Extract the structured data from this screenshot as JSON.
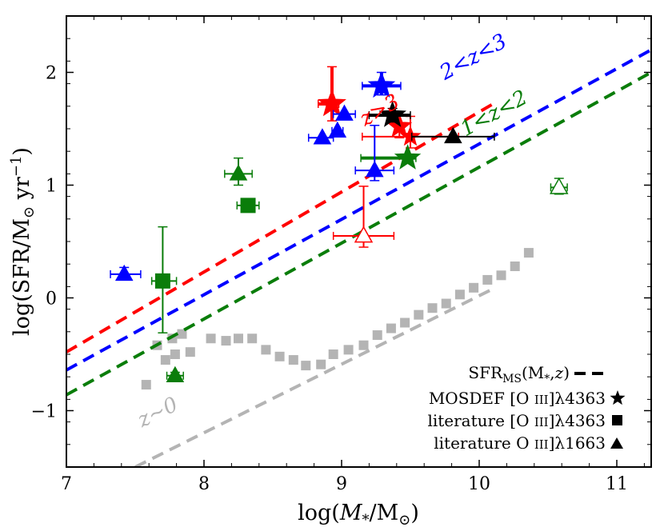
{
  "chart_data": {
    "type": "scatter",
    "title": "",
    "xlabel": "log(M*/M⊙)",
    "ylabel": "log(SFR/M⊙ yr⁻¹)",
    "xlim": [
      7,
      11.25
    ],
    "ylim": [
      -1.5,
      2.5
    ],
    "x_ticks": [
      "7",
      "8",
      "9",
      "10",
      "11"
    ],
    "y_ticks": [
      "−1",
      "0",
      "1",
      "2"
    ],
    "legend": {
      "placement": "bottom-right",
      "entries": [
        {
          "label": "SFR_MS(M*,z)",
          "marker": "dash"
        },
        {
          "label": "MOSDEF [O III]λ4363",
          "marker": "star"
        },
        {
          "label": "literature [O III]λ4363",
          "marker": "square"
        },
        {
          "label": "literature O III]λ1663",
          "marker": "triangle"
        }
      ]
    },
    "colors": {
      "red": "#ff0000",
      "blue": "#0000ff",
      "green": "#0a7d0a",
      "black": "#000000",
      "gray": "#b4b4b4"
    },
    "main_sequence_lines": [
      {
        "name": "z>3",
        "label": "z>3",
        "color": "red",
        "x": [
          7.0,
          10.1
        ],
        "y": [
          -0.48,
          1.72
        ]
      },
      {
        "name": "2<z<3",
        "label": "2<z<3",
        "color": "blue",
        "x": [
          7.0,
          11.25
        ],
        "y": [
          -0.64,
          2.2
        ]
      },
      {
        "name": "1<z<2",
        "label": "1<z<2",
        "color": "green",
        "x": [
          7.0,
          11.25
        ],
        "y": [
          -0.86,
          2.0
        ]
      },
      {
        "name": "z~0",
        "label": "z~0",
        "color": "gray",
        "x": [
          7.5,
          10.1
        ],
        "y": [
          -1.5,
          0.08
        ]
      }
    ],
    "gray_points": {
      "x": [
        7.58,
        7.66,
        7.72,
        7.77,
        7.79,
        7.84,
        7.9,
        8.05,
        8.16,
        8.25,
        8.35,
        8.45,
        8.55,
        8.65,
        8.74,
        8.85,
        8.94,
        9.05,
        9.16,
        9.26,
        9.36,
        9.46,
        9.56,
        9.66,
        9.76,
        9.86,
        9.96,
        10.06,
        10.16,
        10.26,
        10.36
      ],
      "y": [
        -0.77,
        -0.42,
        -0.55,
        -0.36,
        -0.5,
        -0.32,
        -0.48,
        -0.36,
        -0.38,
        -0.36,
        -0.36,
        -0.46,
        -0.52,
        -0.55,
        -0.6,
        -0.59,
        -0.5,
        -0.46,
        -0.42,
        -0.33,
        -0.27,
        -0.22,
        -0.15,
        -0.09,
        -0.05,
        0.03,
        0.09,
        0.16,
        0.2,
        0.28,
        0.4
      ]
    },
    "series": [
      {
        "name": "MOSDEF [O III]λ4363",
        "marker": "star",
        "points": [
          {
            "x": 8.93,
            "y": 1.72,
            "color": "red",
            "xerr": [
              0.1,
              0.05
            ],
            "yerr": [
              0.15,
              0.33
            ],
            "size": 1.25
          },
          {
            "x": 9.42,
            "y": 1.52,
            "color": "red",
            "xerr": [
              0.0,
              0.0
            ],
            "yerr": [
              0.1,
              0.1
            ],
            "size": 1.1
          },
          {
            "x": 9.5,
            "y": 1.43,
            "color": "red",
            "xerr": [
              0.35,
              0.35
            ],
            "yerr": [
              0.1,
              0.18
            ],
            "size": 0.9
          },
          {
            "x": 9.29,
            "y": 1.88,
            "color": "blue",
            "xerr": [
              0.14,
              0.14
            ],
            "yerr": [
              0.08,
              0.12
            ],
            "size": 1.2
          },
          {
            "x": 9.37,
            "y": 1.62,
            "color": "black",
            "xerr": [
              0.17,
              0.13
            ],
            "yerr": [
              0.06,
              0.06
            ],
            "size": 1.2
          },
          {
            "x": 9.48,
            "y": 1.24,
            "color": "green",
            "xerr": [
              0.34,
              0.06
            ],
            "yerr": [
              0.0,
              0.0
            ],
            "size": 1.15
          }
        ]
      },
      {
        "name": "literature [O III]λ4363",
        "marker": "square",
        "points": [
          {
            "x": 7.7,
            "y": 0.15,
            "color": "green",
            "xerr": [
              0.08,
              0.1
            ],
            "yerr": [
              0.46,
              0.48
            ]
          },
          {
            "x": 8.32,
            "y": 0.82,
            "color": "green",
            "xerr": [
              0.08,
              0.08
            ],
            "yerr": [
              0.04,
              0.06
            ]
          }
        ]
      },
      {
        "name": "literature O III]λ1663",
        "marker": "triangle",
        "points": [
          {
            "x": 7.42,
            "y": 0.21,
            "color": "blue",
            "xerr": [
              0.1,
              0.12
            ],
            "yerr": [
              0.04,
              0.06
            ]
          },
          {
            "x": 7.79,
            "y": -0.69,
            "color": "green",
            "xerr": [
              0.06,
              0.06
            ],
            "yerr": [
              0.03,
              0.03
            ]
          },
          {
            "x": 8.25,
            "y": 1.1,
            "color": "green",
            "xerr": [
              0.1,
              0.1
            ],
            "yerr": [
              0.1,
              0.14
            ]
          },
          {
            "x": 8.86,
            "y": 1.42,
            "color": "blue",
            "xerr": [
              0.1,
              0.08
            ],
            "yerr": [
              0.0,
              0.0
            ]
          },
          {
            "x": 8.97,
            "y": 1.48,
            "color": "blue",
            "xerr": [
              0.04,
              0.04
            ],
            "yerr": [
              0.0,
              0.0
            ]
          },
          {
            "x": 9.02,
            "y": 1.63,
            "color": "blue",
            "xerr": [
              0.08,
              0.08
            ],
            "yerr": [
              0.0,
              0.0
            ]
          },
          {
            "x": 9.24,
            "y": 1.13,
            "color": "blue",
            "xerr": [
              0.14,
              0.14
            ],
            "yerr": [
              0.09,
              0.4
            ]
          },
          {
            "x": 9.81,
            "y": 1.43,
            "color": "black",
            "xerr": [
              0.3,
              0.3
            ],
            "yerr": [
              0.0,
              0.0
            ]
          },
          {
            "x": 9.16,
            "y": 0.55,
            "color": "red",
            "xerr": [
              0.22,
              0.22
            ],
            "yerr": [
              0.1,
              0.44
            ],
            "open": true
          },
          {
            "x": 10.58,
            "y": 0.98,
            "color": "green",
            "xerr": [
              0.06,
              0.06
            ],
            "yerr": [
              0.06,
              0.08
            ],
            "open": true
          }
        ]
      }
    ]
  }
}
